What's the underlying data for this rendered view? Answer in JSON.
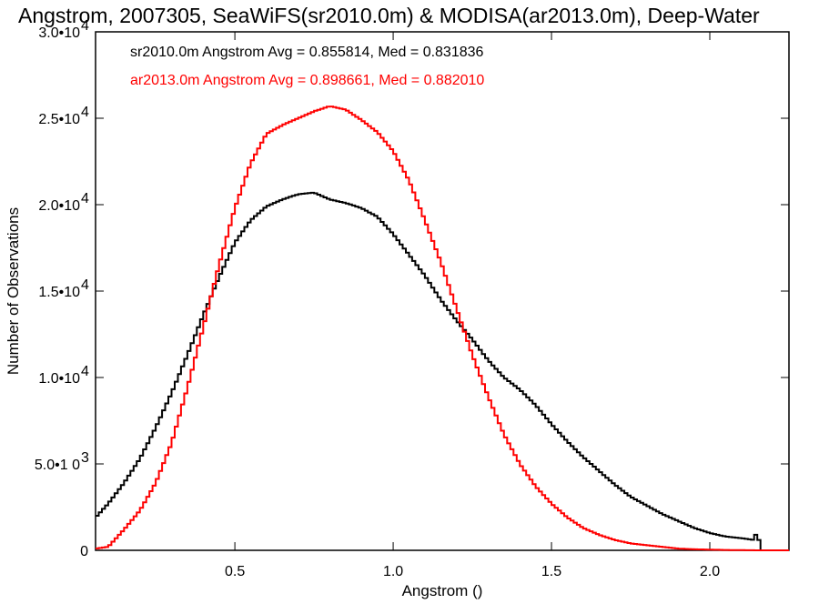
{
  "chart_data": {
    "type": "line",
    "title": "Angstrom, 2007305, SeaWiFS(sr2010.0m) & MODISA(ar2013.0m), Deep-Water",
    "xlabel": "Angstrom ()",
    "ylabel": "Number of Observations",
    "xlim": [
      0.06,
      2.25
    ],
    "ylim": [
      0,
      30000
    ],
    "x_ticks": [
      0.5,
      1.0,
      1.5,
      2.0
    ],
    "x_tick_labels": [
      "0.5",
      "1.0",
      "1.5",
      "2.0"
    ],
    "y_ticks": [
      {
        "value": 0,
        "base": "0",
        "exp": ""
      },
      {
        "value": 5000,
        "base": "5.0•1 0",
        "exp": "3"
      },
      {
        "value": 10000,
        "base": "1.0•10",
        "exp": "4"
      },
      {
        "value": 15000,
        "base": "1.5•10",
        "exp": "4"
      },
      {
        "value": 20000,
        "base": "2.0•10",
        "exp": "4"
      },
      {
        "value": 25000,
        "base": "2.5•10",
        "exp": "4"
      },
      {
        "value": 30000,
        "base": "3.0•10",
        "exp": "4"
      }
    ],
    "legend": [
      {
        "text": "sr2010.0m Angstrom Avg = 0.855814, Med = 0.831836",
        "color": "#000000"
      },
      {
        "text": "ar2013.0m Angstrom Avg = 0.898661, Med = 0.882010",
        "color": "#ff0000"
      }
    ],
    "legend_position": "top-left",
    "grid": false,
    "series": [
      {
        "color": "#000000",
        "x": [
          0.06,
          0.1,
          0.15,
          0.2,
          0.25,
          0.3,
          0.35,
          0.4,
          0.45,
          0.5,
          0.55,
          0.6,
          0.65,
          0.7,
          0.75,
          0.8,
          0.85,
          0.9,
          0.95,
          1.0,
          1.05,
          1.1,
          1.15,
          1.2,
          1.25,
          1.3,
          1.35,
          1.4,
          1.45,
          1.5,
          1.55,
          1.6,
          1.65,
          1.7,
          1.75,
          1.8,
          1.85,
          1.9,
          1.95,
          2.0,
          2.05,
          2.1,
          2.14,
          2.15,
          2.16,
          2.25
        ],
        "y": [
          1900,
          2700,
          3900,
          5300,
          7100,
          9100,
          11300,
          13600,
          15800,
          17800,
          19100,
          19900,
          20300,
          20600,
          20700,
          20300,
          20100,
          19800,
          19300,
          18300,
          17100,
          15900,
          14500,
          13300,
          12200,
          11000,
          10000,
          9300,
          8400,
          7300,
          6300,
          5400,
          4600,
          3800,
          3100,
          2600,
          2100,
          1700,
          1300,
          1000,
          800,
          700,
          600,
          1200,
          0,
          0
        ]
      },
      {
        "color": "#ff0000",
        "x": [
          0.06,
          0.1,
          0.15,
          0.2,
          0.25,
          0.3,
          0.35,
          0.4,
          0.45,
          0.5,
          0.55,
          0.6,
          0.65,
          0.7,
          0.75,
          0.8,
          0.85,
          0.9,
          0.95,
          1.0,
          1.05,
          1.1,
          1.15,
          1.2,
          1.25,
          1.3,
          1.35,
          1.4,
          1.45,
          1.5,
          1.55,
          1.6,
          1.65,
          1.7,
          1.75,
          1.8,
          1.85,
          1.9,
          1.95,
          2.0,
          2.05,
          2.1,
          2.15,
          2.25
        ],
        "y": [
          100,
          200,
          1200,
          2300,
          3900,
          6200,
          9400,
          12900,
          16500,
          19800,
          22400,
          24100,
          24600,
          25000,
          25400,
          25700,
          25500,
          24900,
          24200,
          23100,
          21400,
          19100,
          16700,
          14000,
          11300,
          8900,
          6700,
          5000,
          3700,
          2700,
          1900,
          1300,
          900,
          600,
          400,
          300,
          200,
          100,
          60,
          40,
          20,
          10,
          0,
          0
        ]
      }
    ]
  }
}
